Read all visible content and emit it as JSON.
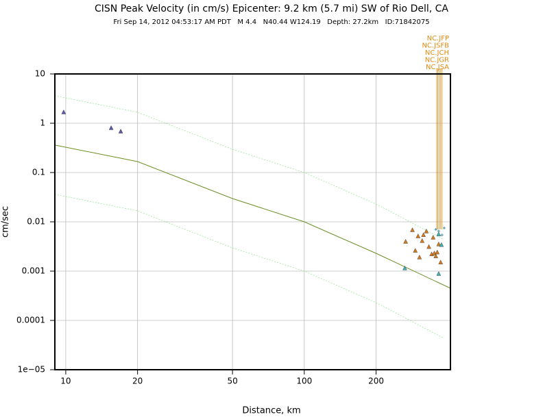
{
  "chart_data": {
    "type": "scatter",
    "title": "CISN Peak Velocity (in cm/s) Epicenter: 9.2 km (5.7 mi) SW of Rio Dell, CA",
    "subtitle": "Fri Sep 14, 2012 04:53:17 AM PDT   M 4.4   N40.44 W124.19   Depth: 27.2km   ID:71842075",
    "x_label": "Distance, km",
    "y_label": "cm/sec",
    "log_x": true,
    "log_y": true,
    "grid": true,
    "xlim": [
      9,
      410
    ],
    "ylim": [
      1e-05,
      10
    ],
    "xticks": [
      10,
      20,
      50,
      100,
      200
    ],
    "yticks": [
      10,
      1,
      0.1,
      0.01,
      0.001,
      0.0001,
      {
        "value": 1e-05,
        "label": "1e−05"
      }
    ],
    "lines": [
      {
        "color": "#6b8e23",
        "dashed": false,
        "x": [
          9,
          20,
          50,
          100,
          200,
          410
        ],
        "values": [
          0.36,
          0.167,
          0.0297,
          0.01,
          0.0023,
          0.00045
        ]
      },
      {
        "color": "#98e898",
        "dashed": true,
        "x": [
          9,
          20,
          50,
          100,
          200,
          380
        ],
        "values": [
          3.6,
          1.67,
          0.297,
          0.1,
          0.023,
          0.0045
        ]
      },
      {
        "color": "#98e898",
        "dashed": true,
        "x": [
          9,
          20,
          50,
          100,
          200,
          380
        ],
        "values": [
          0.036,
          0.0167,
          0.00297,
          0.001,
          0.00023,
          4.5e-05
        ]
      }
    ],
    "series": [
      {
        "marker": "triangle",
        "color": "#5a5aa8",
        "x": [
          9.8,
          15.5,
          17.0
        ],
        "values": [
          1.67,
          0.8,
          0.68
        ]
      },
      {
        "marker": "triangle",
        "color": "#d2781e",
        "x": [
          266,
          284,
          300,
          292,
          304,
          312,
          316,
          325,
          333,
          342,
          347,
          351,
          356,
          361,
          366,
          373
        ],
        "values": [
          0.00395,
          0.0068,
          0.0051,
          0.0026,
          0.0019,
          0.0041,
          0.0054,
          0.0064,
          0.0031,
          0.0022,
          0.0048,
          0.0023,
          0.002,
          0.0024,
          0.0035,
          0.0015
        ]
      },
      {
        "marker": "triangle",
        "color": "#40b0b0",
        "x": [
          264,
          366,
          376,
          366
        ],
        "values": [
          0.00114,
          0.00088,
          0.0034,
          0.0056
        ]
      },
      {
        "marker": "plus",
        "color": "#3a8aa8",
        "x": [
          356,
          366,
          378,
          386
        ],
        "values": [
          0.007,
          0.0065,
          0.0054,
          0.0075
        ]
      }
    ],
    "station_color": "#e08a10",
    "stations": [
      {
        "label": "NC.JFP",
        "x": 359
      },
      {
        "label": "NC.JSFB",
        "x": 363
      },
      {
        "label": "NC.JCH",
        "x": 368
      },
      {
        "label": "NC.JGR",
        "x": 373
      },
      {
        "label": "NC.JSA",
        "x": 378
      }
    ]
  }
}
